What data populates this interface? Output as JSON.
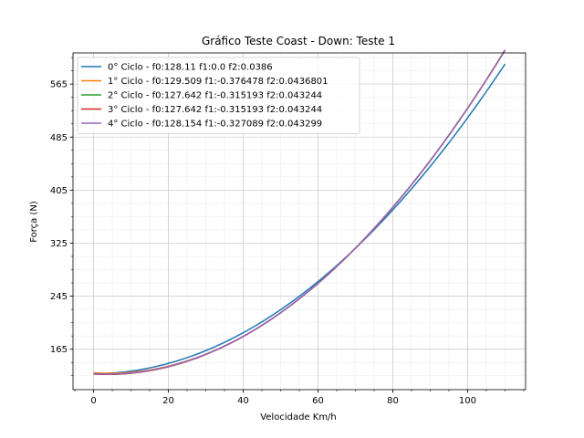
{
  "chart_data": {
    "type": "line",
    "title": "Gráfico Teste Coast - Down: Teste 1",
    "xlabel": "Velocidade Km/h",
    "ylabel": "Força (N)",
    "xlim": [
      -5.5,
      115.5
    ],
    "ylim": [
      104,
      612
    ],
    "xticks": [
      0,
      20,
      40,
      60,
      80,
      100
    ],
    "yticks": [
      165,
      245,
      325,
      405,
      485,
      565
    ],
    "x_minor_step": 5,
    "y_minor_step": 20,
    "grid": true,
    "legend_position": "top-left",
    "x_range": [
      0,
      110
    ],
    "series": [
      {
        "name": "0° Ciclo - f0:128.11 f1:0.0 f2:0.0386",
        "color": "#1f77b4",
        "f0": 128.11,
        "f1": 0.0,
        "f2": 0.0386
      },
      {
        "name": "1° Ciclo - f0:129.509 f1:-0.376478 f2:0.0436801",
        "color": "#ff7f0e",
        "f0": 129.509,
        "f1": -0.376478,
        "f2": 0.0436801
      },
      {
        "name": "2° Ciclo - f0:127.642 f1:-0.315193 f2:0.043244",
        "color": "#2ca02c",
        "f0": 127.642,
        "f1": -0.315193,
        "f2": 0.043244
      },
      {
        "name": "3° Ciclo - f0:127.642 f1:-0.315193 f2:0.043244",
        "color": "#d62728",
        "f0": 127.642,
        "f1": -0.315193,
        "f2": 0.043244
      },
      {
        "name": "4° Ciclo - f0:128.154 f1:-0.327089 f2:0.043299",
        "color": "#9467bd",
        "f0": 128.154,
        "f1": -0.327089,
        "f2": 0.043299
      }
    ]
  }
}
